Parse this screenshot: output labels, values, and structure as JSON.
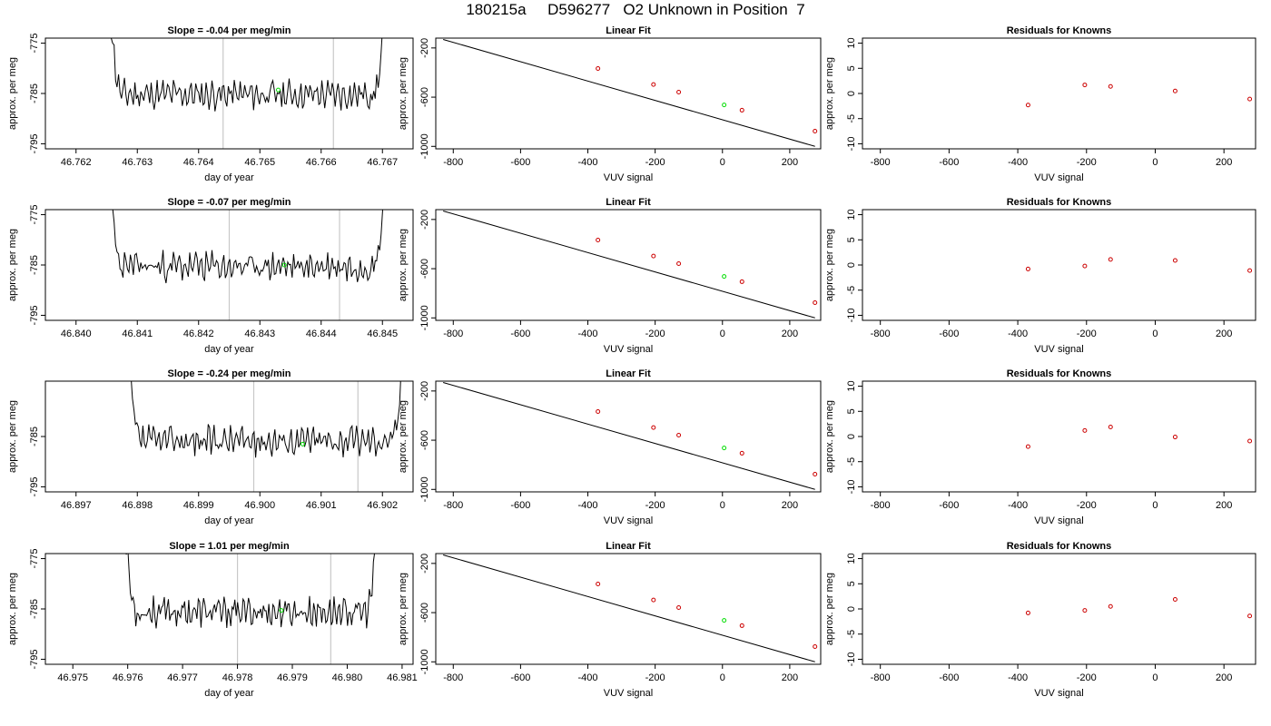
{
  "page_title": "180215a     D596277   O2 Unknown in Position  7",
  "colors": {
    "trace": "#000000",
    "unknown_marker": "#00dd00",
    "known_marker": "#cc0000",
    "marker_line": "#c8c8c8"
  },
  "chart_data": [
    {
      "type": "line",
      "title": "Slope =  -0.04  per meg/min",
      "xlabel": "day of year",
      "ylabel": "approx. per meg",
      "xlim": [
        46.7615,
        46.7675
      ],
      "ylim": [
        -796,
        -774
      ],
      "xticks": [
        "46.762",
        "46.763",
        "46.764",
        "46.765",
        "46.766",
        "46.767"
      ],
      "yticks": [
        "-775",
        "-785",
        "-795"
      ],
      "vlines": [
        46.7644,
        46.7662
      ],
      "trace_range": [
        46.7625,
        46.7671
      ],
      "trace_seed": 11,
      "trace_mean": -785.2,
      "unknown_point": {
        "x": 46.7653,
        "y": -784.3
      },
      "grid": false
    },
    {
      "type": "scatter",
      "title": "Linear Fit",
      "xlabel": "VUV signal",
      "ylabel": "approx. per meg",
      "xlim": [
        -852,
        292
      ],
      "ylim": [
        -1020,
        -120
      ],
      "xticks": [
        "-800",
        "-600",
        "-400",
        "-200",
        "0",
        "200"
      ],
      "yticks": [
        "-200",
        "-600",
        "-1000"
      ],
      "fit_line": {
        "x": [
          -830,
          275
        ],
        "y": [
          -131,
          -1000
        ]
      },
      "knowns": {
        "x": [
          -370,
          -205,
          -130,
          58,
          275
        ],
        "y": [
          -367,
          -497,
          -559,
          -706,
          -876
        ]
      },
      "unknown_point": {
        "x": 5,
        "y": -663
      },
      "grid": false
    },
    {
      "type": "scatter",
      "title": "Residuals for Knowns",
      "xlabel": "VUV signal",
      "ylabel": "approx. per meg",
      "xlim": [
        -852,
        292
      ],
      "ylim": [
        -11,
        11
      ],
      "xticks": [
        "-800",
        "-600",
        "-400",
        "-200",
        "0",
        "200"
      ],
      "yticks": [
        "-10",
        "-5",
        "0",
        "5",
        "10"
      ],
      "knowns": {
        "x": [
          -370,
          -205,
          -130,
          58,
          275
        ],
        "y": [
          -2.3,
          1.7,
          1.4,
          0.5,
          -1.1
        ]
      },
      "grid": false
    },
    {
      "type": "line",
      "title": "Slope =  -0.07  per meg/min",
      "xlabel": "day of year",
      "ylabel": "approx. per meg",
      "xlim": [
        46.8395,
        46.8455
      ],
      "ylim": [
        -796,
        -774
      ],
      "xticks": [
        "46.840",
        "46.841",
        "46.842",
        "46.843",
        "46.844",
        "46.845"
      ],
      "yticks": [
        "-775",
        "-785",
        "-795"
      ],
      "vlines": [
        46.8425,
        46.8443
      ],
      "trace_range": [
        46.8405,
        46.8451
      ],
      "trace_seed": 23,
      "trace_mean": -785.3,
      "unknown_point": {
        "x": 46.8434,
        "y": -785.0
      },
      "grid": false
    },
    {
      "type": "scatter",
      "title": "Linear Fit",
      "xlabel": "VUV signal",
      "ylabel": "approx. per meg",
      "xlim": [
        -852,
        292
      ],
      "ylim": [
        -1020,
        -120
      ],
      "xticks": [
        "-800",
        "-600",
        "-400",
        "-200",
        "0",
        "200"
      ],
      "yticks": [
        "-200",
        "-600",
        "-1000"
      ],
      "fit_line": {
        "x": [
          -830,
          275
        ],
        "y": [
          -131,
          -1000
        ]
      },
      "knowns": {
        "x": [
          -370,
          -205,
          -130,
          58,
          275
        ],
        "y": [
          -367,
          -497,
          -559,
          -706,
          -876
        ]
      },
      "unknown_point": {
        "x": 5,
        "y": -663
      },
      "grid": false
    },
    {
      "type": "scatter",
      "title": "Residuals for Knowns",
      "xlabel": "VUV signal",
      "ylabel": "approx. per meg",
      "xlim": [
        -852,
        292
      ],
      "ylim": [
        -11,
        11
      ],
      "xticks": [
        "-800",
        "-600",
        "-400",
        "-200",
        "0",
        "200"
      ],
      "yticks": [
        "-10",
        "-5",
        "0",
        "5",
        "10"
      ],
      "knowns": {
        "x": [
          -370,
          -205,
          -130,
          58,
          275
        ],
        "y": [
          -0.8,
          -0.2,
          1.1,
          0.9,
          -1.1
        ]
      },
      "grid": false
    },
    {
      "type": "line",
      "title": "Slope =  -0.24  per meg/min",
      "xlabel": "day of year",
      "ylabel": "approx. per meg",
      "xlim": [
        46.8965,
        46.9025
      ],
      "ylim": [
        -796,
        -774
      ],
      "xticks": [
        "46.897",
        "46.898",
        "46.899",
        "46.900",
        "46.901",
        "46.902"
      ],
      "yticks": [
        "-785",
        "-795"
      ],
      "vlines": [
        46.8999,
        46.9016
      ],
      "trace_range": [
        46.8978,
        46.9024
      ],
      "trace_seed": 37,
      "trace_mean": -785.8,
      "unknown_point": {
        "x": 46.9007,
        "y": -786.5
      },
      "grid": false
    },
    {
      "type": "scatter",
      "title": "Linear Fit",
      "xlabel": "VUV signal",
      "ylabel": "approx. per meg",
      "xlim": [
        -852,
        292
      ],
      "ylim": [
        -1020,
        -120
      ],
      "xticks": [
        "-800",
        "-600",
        "-400",
        "-200",
        "0",
        "200"
      ],
      "yticks": [
        "-200",
        "-600",
        "-1000"
      ],
      "fit_line": {
        "x": [
          -830,
          275
        ],
        "y": [
          -131,
          -1000
        ]
      },
      "knowns": {
        "x": [
          -370,
          -205,
          -130,
          58,
          275
        ],
        "y": [
          -367,
          -497,
          -559,
          -706,
          -876
        ]
      },
      "unknown_point": {
        "x": 5,
        "y": -663
      },
      "grid": false
    },
    {
      "type": "scatter",
      "title": "Residuals for Knowns",
      "xlabel": "VUV signal",
      "ylabel": "approx. per meg",
      "xlim": [
        -852,
        292
      ],
      "ylim": [
        -11,
        11
      ],
      "xticks": [
        "-800",
        "-600",
        "-400",
        "-200",
        "0",
        "200"
      ],
      "yticks": [
        "-10",
        "-5",
        "0",
        "5",
        "10"
      ],
      "knowns": {
        "x": [
          -370,
          -205,
          -130,
          58,
          275
        ],
        "y": [
          -2.0,
          1.2,
          1.9,
          -0.1,
          -0.9
        ]
      },
      "grid": false
    },
    {
      "type": "line",
      "title": "Slope =  1.01  per meg/min",
      "xlabel": "day of year",
      "ylabel": "approx. per meg",
      "xlim": [
        46.9745,
        46.9812
      ],
      "ylim": [
        -796,
        -774
      ],
      "xticks": [
        "46.975",
        "46.976",
        "46.977",
        "46.978",
        "46.979",
        "46.980",
        "46.981"
      ],
      "yticks": [
        "-775",
        "-785",
        "-795"
      ],
      "vlines": [
        46.978,
        46.9797
      ],
      "trace_range": [
        46.9759,
        46.9806
      ],
      "trace_seed": 53,
      "trace_mean": -785.6,
      "unknown_point": {
        "x": 46.9788,
        "y": -785.3
      },
      "grid": false
    },
    {
      "type": "scatter",
      "title": "Linear Fit",
      "xlabel": "VUV signal",
      "ylabel": "approx. per meg",
      "xlim": [
        -852,
        292
      ],
      "ylim": [
        -1020,
        -120
      ],
      "xticks": [
        "-800",
        "-600",
        "-400",
        "-200",
        "0",
        "200"
      ],
      "yticks": [
        "-200",
        "-600",
        "-1000"
      ],
      "fit_line": {
        "x": [
          -830,
          275
        ],
        "y": [
          -131,
          -1000
        ]
      },
      "knowns": {
        "x": [
          -370,
          -205,
          -130,
          58,
          275
        ],
        "y": [
          -367,
          -497,
          -559,
          -706,
          -876
        ]
      },
      "unknown_point": {
        "x": 5,
        "y": -663
      },
      "grid": false
    },
    {
      "type": "scatter",
      "title": "Residuals for Knowns",
      "xlabel": "VUV signal",
      "ylabel": "approx. per meg",
      "xlim": [
        -852,
        292
      ],
      "ylim": [
        -11,
        11
      ],
      "xticks": [
        "-800",
        "-600",
        "-400",
        "-200",
        "0",
        "200"
      ],
      "yticks": [
        "-10",
        "-5",
        "0",
        "5",
        "10"
      ],
      "knowns": {
        "x": [
          -370,
          -205,
          -130,
          58,
          275
        ],
        "y": [
          -0.8,
          -0.3,
          0.5,
          1.9,
          -1.4
        ]
      },
      "grid": false
    }
  ]
}
